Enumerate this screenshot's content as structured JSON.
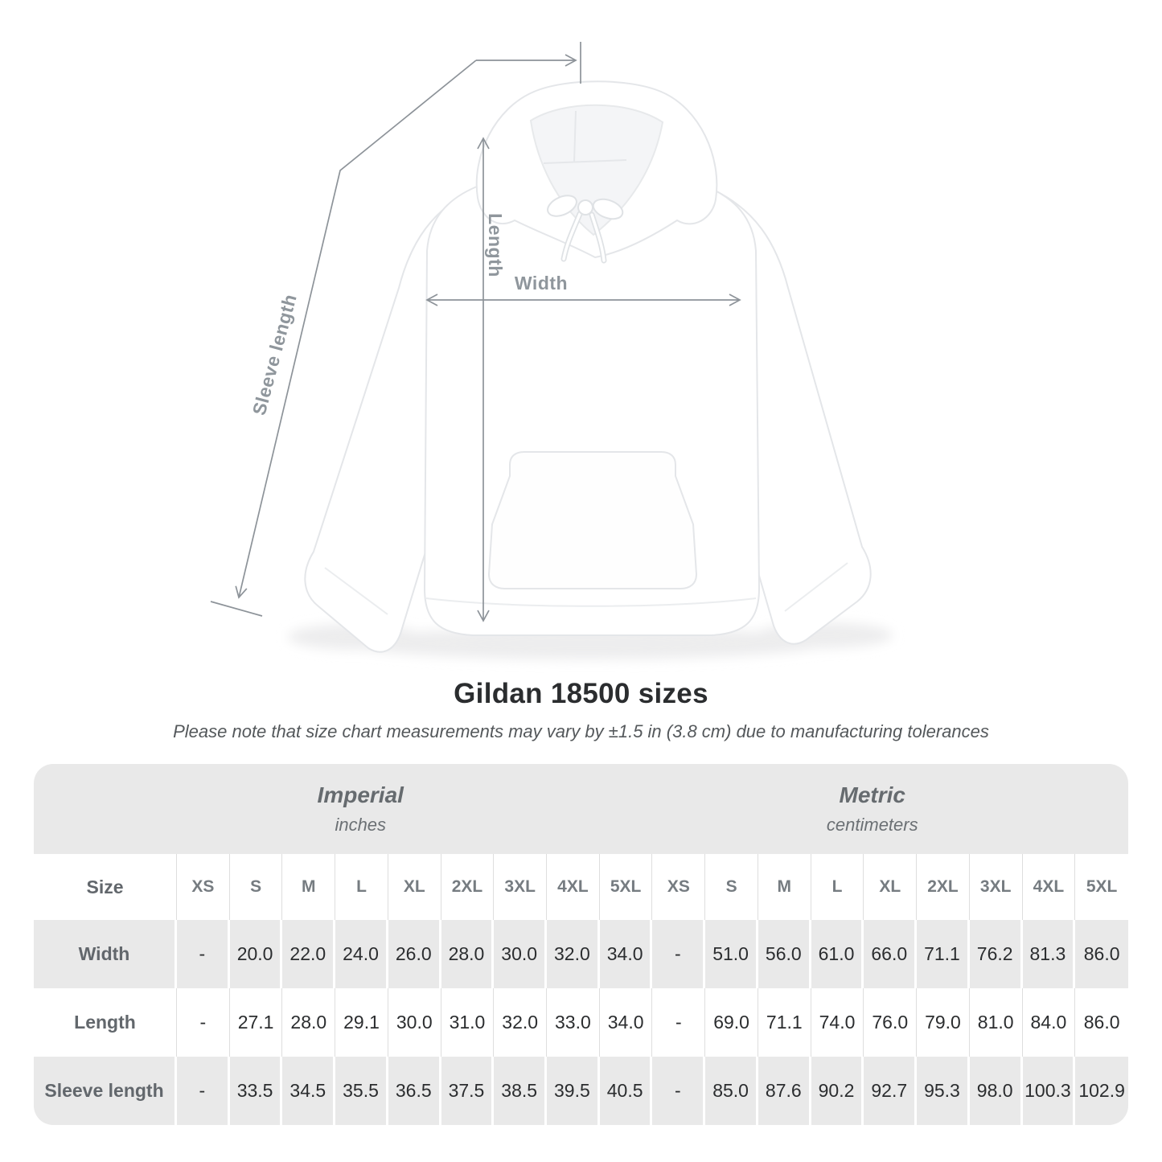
{
  "diagram": {
    "labels": {
      "width": "Width",
      "length": "Length",
      "sleeve_length": "Sleeve length"
    }
  },
  "heading": {
    "title": "Gildan 18500 sizes",
    "note": "Please note that size chart measurements may vary by ±1.5 in (3.8 cm) due to manufacturing tolerances"
  },
  "table": {
    "unit_groups": [
      {
        "label": "Imperial",
        "sublabel": "inches"
      },
      {
        "label": "Metric",
        "sublabel": "centimeters"
      }
    ],
    "size_header": "Size",
    "size_columns": [
      "XS",
      "S",
      "M",
      "L",
      "XL",
      "2XL",
      "3XL",
      "4XL",
      "5XL"
    ],
    "rows": [
      {
        "label": "Width",
        "imperial": [
          "-",
          "20.0",
          "22.0",
          "24.0",
          "26.0",
          "28.0",
          "30.0",
          "32.0",
          "34.0"
        ],
        "metric": [
          "-",
          "51.0",
          "56.0",
          "61.0",
          "66.0",
          "71.1",
          "76.2",
          "81.3",
          "86.0"
        ]
      },
      {
        "label": "Length",
        "imperial": [
          "-",
          "27.1",
          "28.0",
          "29.1",
          "30.0",
          "31.0",
          "32.0",
          "33.0",
          "34.0"
        ],
        "metric": [
          "-",
          "69.0",
          "71.1",
          "74.0",
          "76.0",
          "79.0",
          "81.0",
          "84.0",
          "86.0"
        ]
      },
      {
        "label": "Sleeve length",
        "imperial": [
          "-",
          "33.5",
          "34.5",
          "35.5",
          "36.5",
          "37.5",
          "38.5",
          "39.5",
          "40.5"
        ],
        "metric": [
          "-",
          "85.0",
          "87.6",
          "90.2",
          "92.7",
          "95.3",
          "98.0",
          "100.3",
          "102.9"
        ]
      }
    ]
  },
  "colors": {
    "band_gray": "#e9e9e9",
    "row_gray": "#e9e9e9",
    "separator_white": "#ffffff",
    "separator_light": "#dedede",
    "header_text": "#767c81",
    "row_label_text": "#62676c",
    "value_text": "#2b2d2f",
    "title_text": "#2b2d2f",
    "note_text": "#54585b",
    "measure_line": "#8d9399",
    "measure_label": "#8f969c",
    "garment_outline": "#e4e6e9",
    "garment_fill": "#ffffff"
  }
}
